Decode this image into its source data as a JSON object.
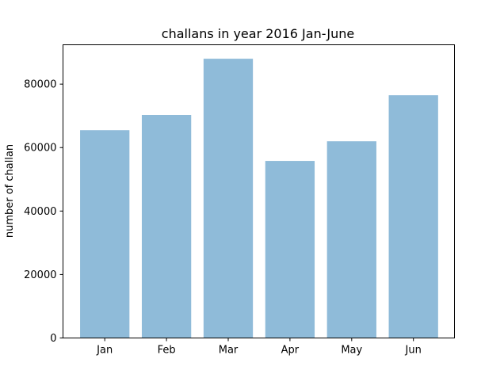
{
  "chart_data": {
    "type": "bar",
    "title": "challans in year 2016 Jan-June",
    "xlabel": "",
    "ylabel": "number of challan",
    "categories": [
      "Jan",
      "Feb",
      "Mar",
      "Apr",
      "May",
      "Jun"
    ],
    "values": [
      65500,
      70300,
      88000,
      55800,
      62000,
      76500
    ],
    "ylim": [
      0,
      92400
    ],
    "yticks": [
      0,
      20000,
      40000,
      60000,
      80000
    ],
    "bar_color": "#8fbbd9",
    "grid": false,
    "legend": "none"
  }
}
